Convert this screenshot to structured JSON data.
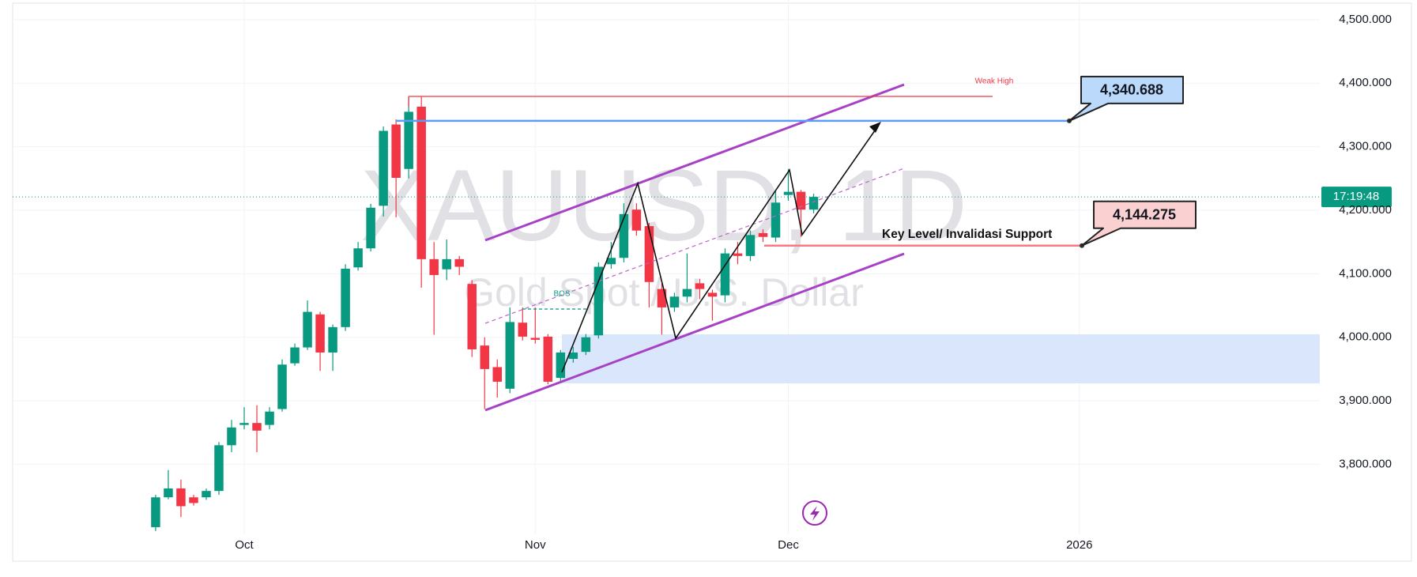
{
  "chart_data": {
    "type": "candlestick",
    "title": "XAUUSD, 1D",
    "subtitle": "Gold Spot / U.S. Dollar",
    "open": [
      3701,
      3748,
      3762,
      3748,
      3748,
      3758,
      3830,
      3862,
      3865,
      3862,
      3887,
      3959,
      3984,
      4036,
      3976,
      4016,
      4110,
      4140,
      4207,
      4335,
      4265,
      4363,
      4123,
      4107,
      4123,
      4084,
      3987,
      3953,
      3919,
      4023,
      3999,
      4001,
      3936,
      3966,
      3977,
      4003,
      4115,
      4125,
      4201,
      4175,
      4076,
      4047,
      4064,
      4085,
      4070,
      4066,
      4132,
      4128,
      4164,
      4157,
      4224,
      4229,
      4201
    ],
    "high": [
      3752,
      3791,
      3776,
      3752,
      3762,
      3835,
      3870,
      3890,
      3893,
      3890,
      3965,
      3990,
      4058,
      4040,
      4020,
      4115,
      4150,
      4210,
      4332,
      4343,
      4379,
      4379,
      4150,
      4154,
      4128,
      4090,
      4000,
      3965,
      4047,
      4047,
      4047,
      4005,
      3980,
      3985,
      4005,
      4118,
      4150,
      4211,
      4211,
      4180,
      4085,
      4070,
      4132,
      4092,
      4075,
      4140,
      4150,
      4168,
      4170,
      4230,
      4265,
      4232,
      4226
    ],
    "low": [
      3695,
      3745,
      3717,
      3735,
      3744,
      3752,
      3819,
      3855,
      3819,
      3855,
      3883,
      3955,
      3980,
      3947,
      3947,
      4010,
      4105,
      4135,
      4190,
      4189,
      4250,
      4078,
      4004,
      4090,
      4098,
      3969,
      3887,
      3905,
      3912,
      3995,
      3990,
      3926,
      3930,
      3960,
      3972,
      3998,
      4108,
      4118,
      4160,
      4047,
      4004,
      4040,
      4055,
      4060,
      4026,
      4055,
      4115,
      4120,
      4150,
      4150,
      4215,
      4158,
      4195
    ],
    "close": [
      3748,
      3762,
      3734,
      3739,
      3758,
      3830,
      3858,
      3865,
      3853,
      3883,
      3957,
      3984,
      4040,
      3976,
      4016,
      4108,
      4140,
      4204,
      4325,
      4251,
      4355,
      4123,
      4098,
      4123,
      4111,
      3981,
      3950,
      3930,
      4024,
      4001,
      3996,
      3930,
      3976,
      3976,
      4000,
      4111,
      4125,
      4194,
      4168,
      4087,
      4047,
      4064,
      4076,
      4076,
      4064,
      4132,
      4128,
      4161,
      4158,
      4212,
      4229,
      4201,
      4221
    ],
    "up_color": "#089981",
    "down_color": "#f23645",
    "ylim": [
      3691,
      4531
    ],
    "yticks": [
      {
        "value": 3800,
        "label": "3,800.000"
      },
      {
        "value": 3900,
        "label": "3,900.000"
      },
      {
        "value": 4000,
        "label": "4,000.000"
      },
      {
        "value": 4100,
        "label": "4,100.000"
      },
      {
        "value": 4200,
        "label": "4,200.000"
      },
      {
        "value": 4300,
        "label": "4,300.000"
      },
      {
        "value": 4400,
        "label": "4,400.000"
      },
      {
        "value": 4500,
        "label": "4,500.000"
      }
    ],
    "xlim": [
      -11.3,
      92
    ],
    "xticks": [
      {
        "value": 7,
        "label": "Oct"
      },
      {
        "value": 30,
        "label": "Nov"
      },
      {
        "value": 50,
        "label": "Dec"
      },
      {
        "value": 73,
        "label": "2026"
      }
    ],
    "grid": true,
    "levels": [
      {
        "value": 4340.688,
        "label": "4,340.688",
        "color": "#5b9cf6",
        "fill": "#bbd9fb"
      },
      {
        "value": 4144.275,
        "label": "4,144.275",
        "color": "#f7787f",
        "fill": "#fbd0d0"
      }
    ],
    "notes": [
      "Key Level/ Invalidasi Support",
      "Weak High",
      "BOS"
    ],
    "countdown": "17:19:48"
  }
}
